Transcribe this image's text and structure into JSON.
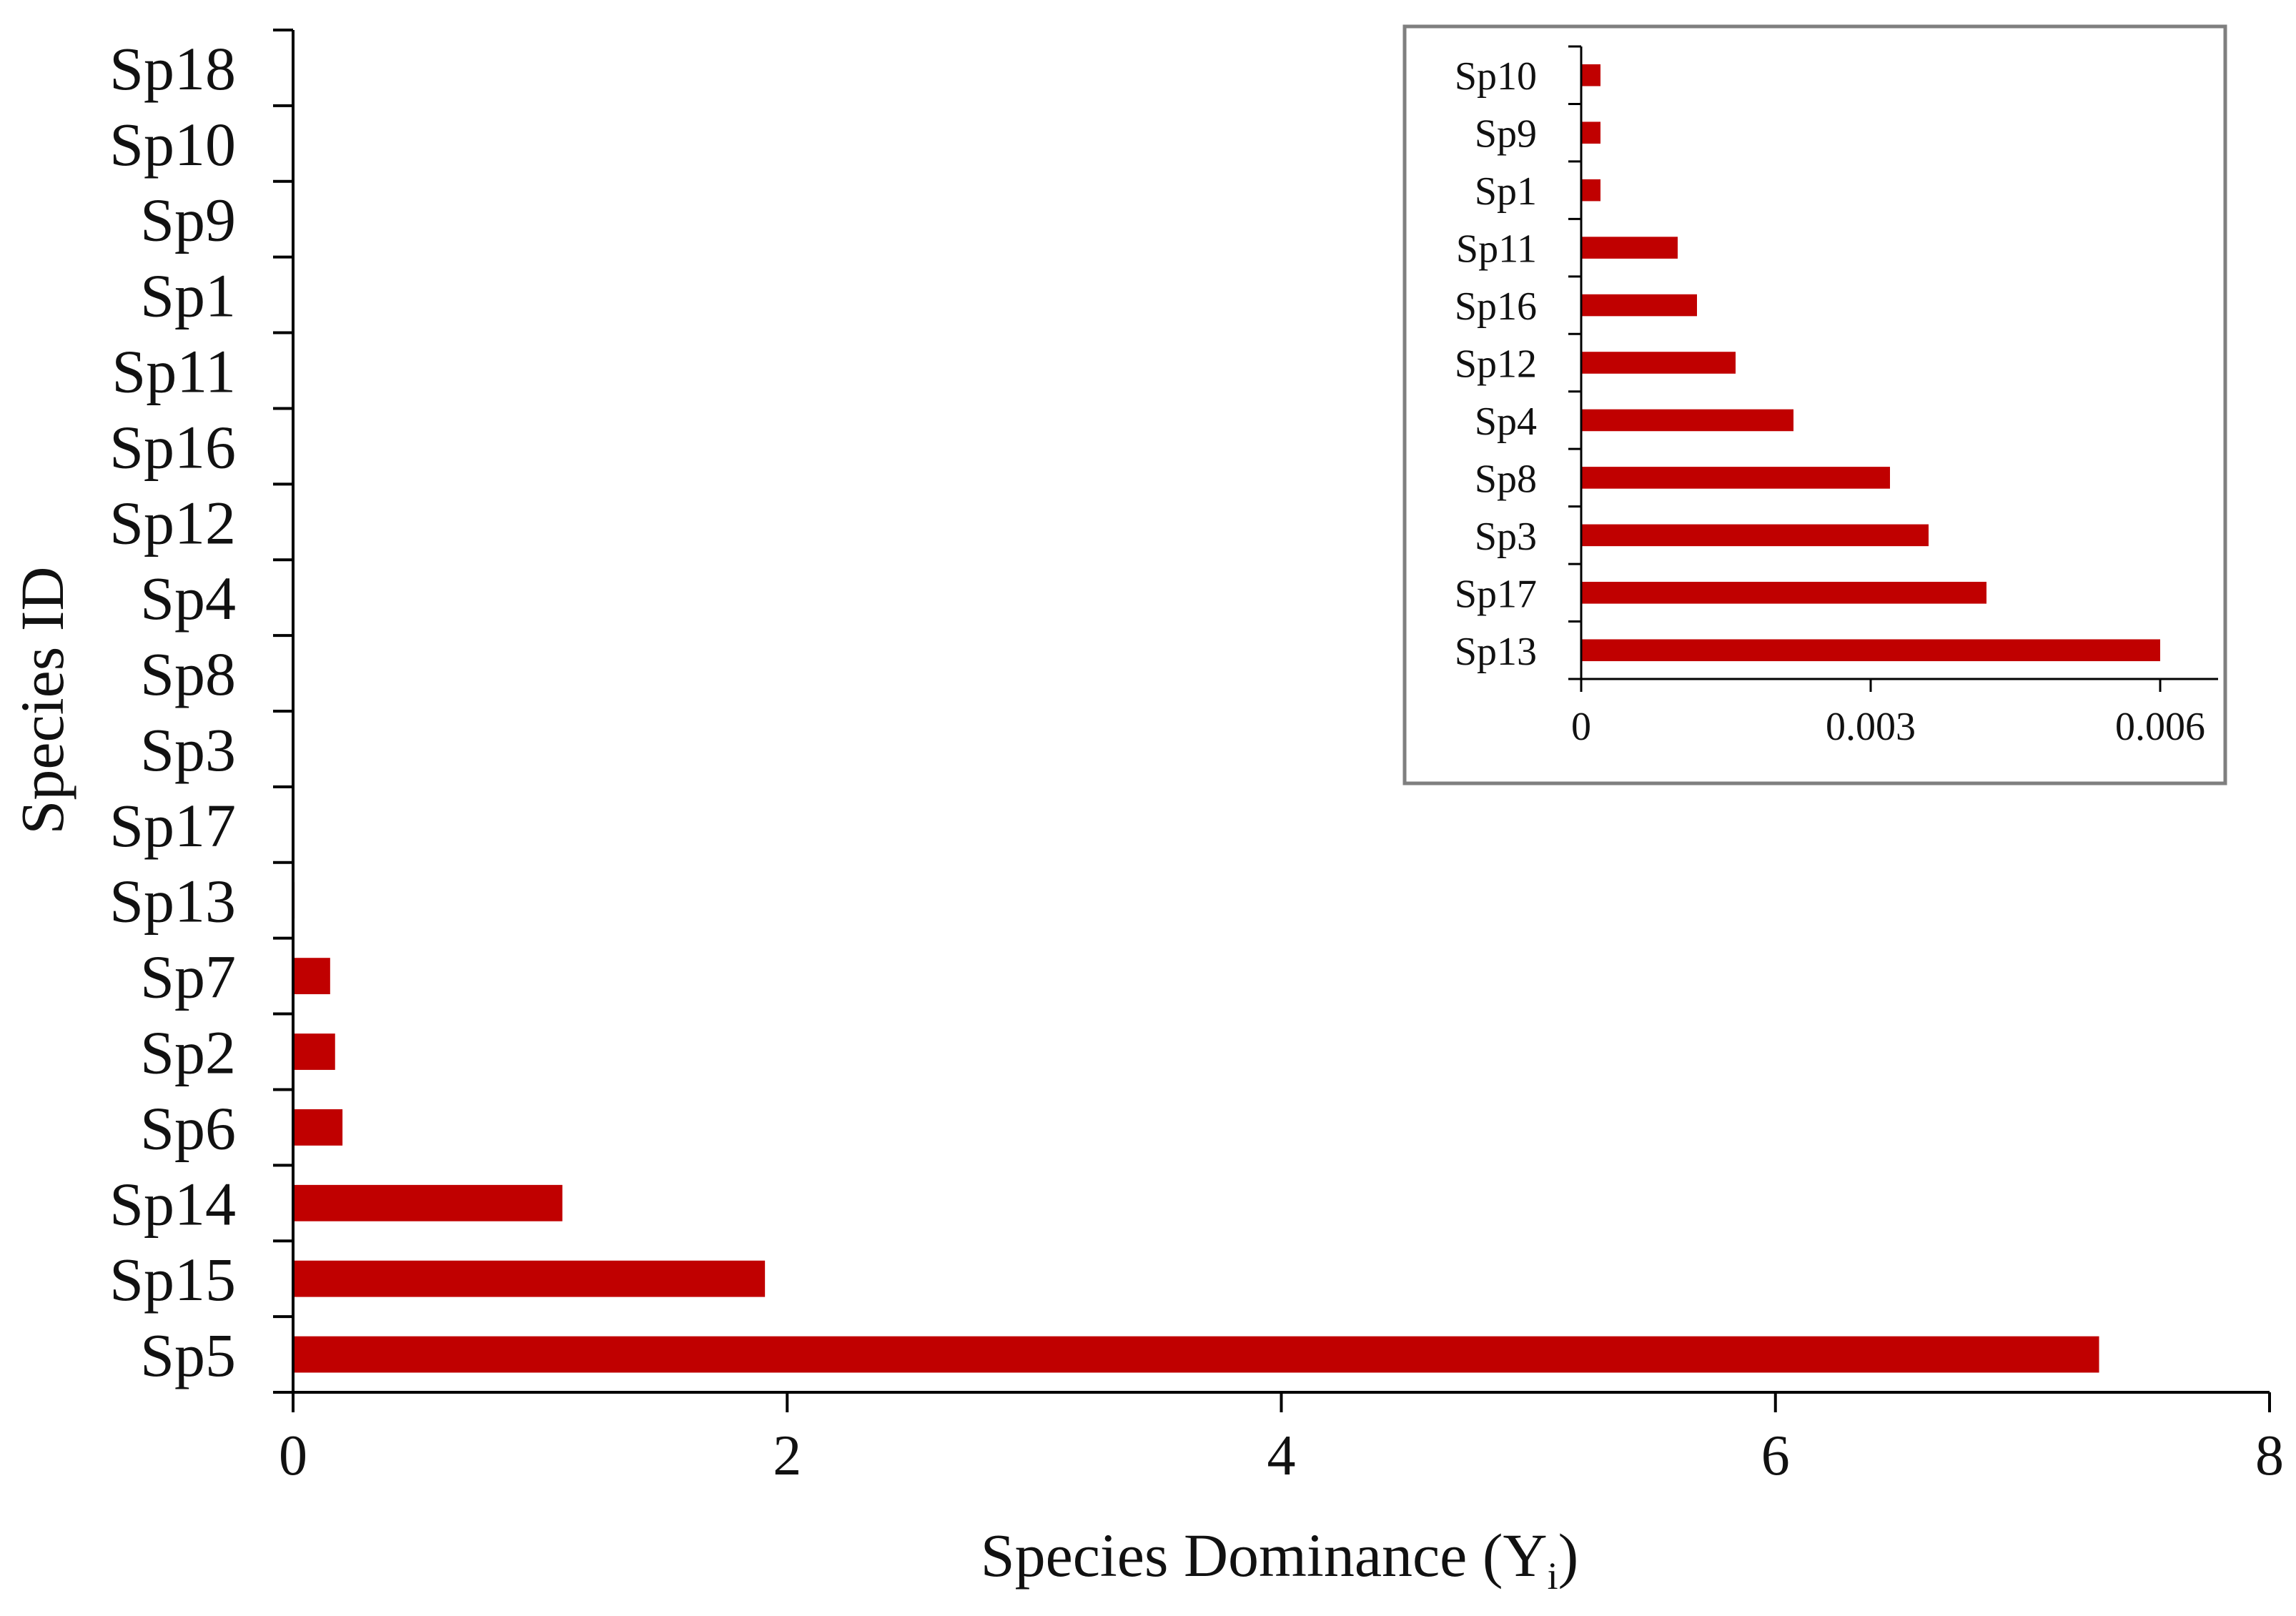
{
  "bar_color": "#C00000",
  "axis_color": "#000000",
  "inset_border_color": "#7f7f7f",
  "chart_data": [
    {
      "type": "bar",
      "orientation": "horizontal",
      "title": "",
      "xlabel": "Species Dominance (Y",
      "xlabel_subscript": "i",
      "xlabel_close": ")",
      "ylabel": "Species ID",
      "xlim": [
        0,
        8
      ],
      "xticks": [
        "0",
        "2",
        "4",
        "6",
        "8"
      ],
      "grid": false,
      "categories": [
        "Sp18",
        "Sp10",
        "Sp9",
        "Sp1",
        "Sp11",
        "Sp16",
        "Sp12",
        "Sp4",
        "Sp8",
        "Sp3",
        "Sp17",
        "Sp13",
        "Sp7",
        "Sp2",
        "Sp6",
        "Sp14",
        "Sp15",
        "Sp5"
      ],
      "values": [
        5e-05,
        0.0002,
        0.0002,
        0.0002,
        0.001,
        0.0012,
        0.0016,
        0.0022,
        0.0032,
        0.0036,
        0.0042,
        0.006,
        0.15,
        0.17,
        0.2,
        1.09,
        1.91,
        7.31
      ]
    },
    {
      "type": "bar",
      "orientation": "horizontal",
      "title": "",
      "xlabel": "",
      "ylabel": "",
      "xlim": [
        0,
        0.0066
      ],
      "xticks": [
        "0",
        "0.003",
        "0.006"
      ],
      "xtick_values": [
        0,
        0.003,
        0.006
      ],
      "grid": false,
      "categories": [
        "Sp10",
        "Sp9",
        "Sp1",
        "Sp11",
        "Sp16",
        "Sp12",
        "Sp4",
        "Sp8",
        "Sp3",
        "Sp17",
        "Sp13"
      ],
      "values": [
        0.0002,
        0.0002,
        0.0002,
        0.001,
        0.0012,
        0.0016,
        0.0022,
        0.0032,
        0.0036,
        0.0042,
        0.006
      ]
    }
  ]
}
